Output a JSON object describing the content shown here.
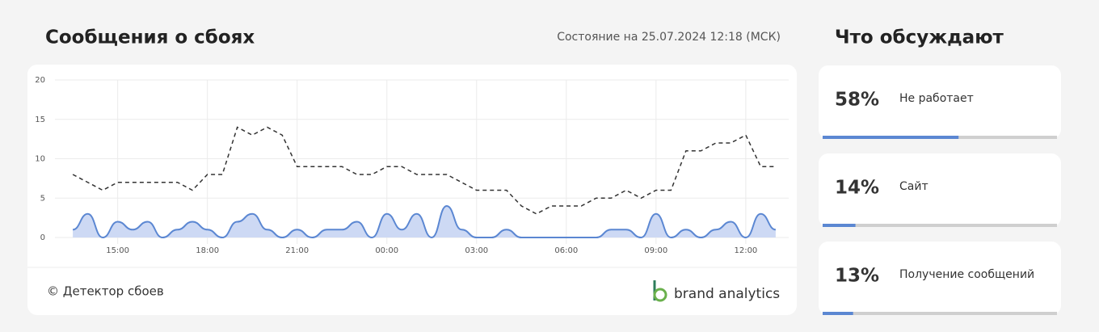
{
  "header": {
    "title": "Сообщения о сбоях",
    "status": "Состояние на 25.07.2024 12:18 (МСК)"
  },
  "chart_data": {
    "type": "line",
    "x": [
      13.5,
      14,
      14.5,
      15,
      15.5,
      16,
      16.5,
      17,
      17.5,
      18,
      18.5,
      19,
      19.5,
      20,
      20.5,
      21,
      21.5,
      22,
      22.5,
      23,
      23.5,
      24,
      24.5,
      25,
      25.5,
      26,
      26.5,
      27,
      27.5,
      28,
      28.5,
      29,
      29.5,
      30,
      30.5,
      31,
      31.5,
      32,
      32.5,
      33,
      33.5,
      34,
      34.5,
      35,
      35.5,
      36,
      36.5,
      37
    ],
    "series": [
      {
        "color": "#333333",
        "line_style": "dashed",
        "values": [
          8,
          7,
          6,
          7,
          7,
          7,
          7,
          7,
          6,
          8,
          8,
          14,
          13,
          14,
          13,
          9,
          9,
          9,
          9,
          8,
          8,
          9,
          9,
          8,
          8,
          8,
          7,
          6,
          6,
          6,
          4,
          3,
          4,
          4,
          4,
          5,
          5,
          6,
          5,
          6,
          6,
          11,
          11,
          12,
          12,
          13,
          9,
          9
        ]
      },
      {
        "color": "#5b87d2",
        "area_color": "#cdd9f4",
        "area": true,
        "values": [
          1,
          3,
          0,
          2,
          1,
          2,
          0,
          1,
          2,
          1,
          0,
          2,
          3,
          1,
          0,
          1,
          0,
          1,
          1,
          2,
          0,
          3,
          1,
          3,
          0,
          4,
          1,
          0,
          0,
          1,
          0,
          0,
          0,
          0,
          0,
          0,
          1,
          1,
          0,
          3,
          0,
          1,
          0,
          1,
          2,
          0,
          3,
          1
        ]
      }
    ],
    "xlim": [
      13.2,
      37.3
    ],
    "xticks": [
      {
        "value": 15,
        "label": "15:00"
      },
      {
        "value": 18,
        "label": "18:00"
      },
      {
        "value": 21,
        "label": "21:00"
      },
      {
        "value": 24,
        "label": "00:00"
      },
      {
        "value": 27,
        "label": "03:00"
      },
      {
        "value": 30,
        "label": "06:00"
      },
      {
        "value": 33,
        "label": "09:00"
      },
      {
        "value": 36,
        "label": "12:00"
      }
    ],
    "ylim": [
      0,
      20
    ],
    "yticks": [
      0,
      5,
      10,
      15,
      20
    ],
    "grid": true
  },
  "footer": {
    "source": "© Детектор сбоев",
    "brand": "brand analytics"
  },
  "sidebar": {
    "title": "Что обсуждают",
    "items": [
      {
        "value": 58,
        "value_label": "58%",
        "label": "Не работает"
      },
      {
        "value": 14,
        "value_label": "14%",
        "label": "Сайт"
      },
      {
        "value": 13,
        "value_label": "13%",
        "label": "Получение сообщений"
      }
    ]
  }
}
